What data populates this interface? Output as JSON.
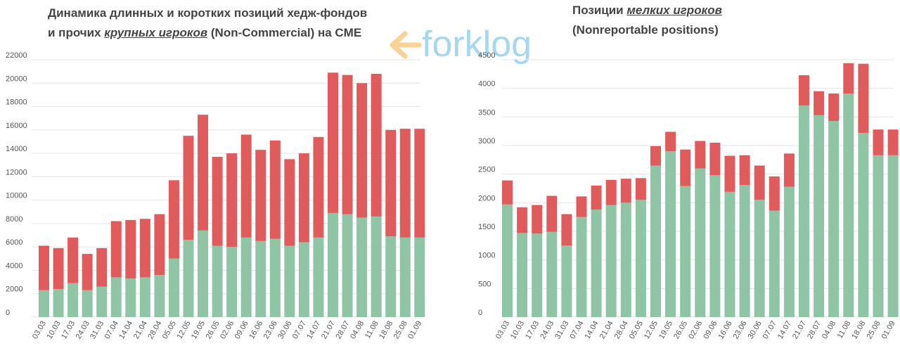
{
  "watermark": {
    "text": "forklog",
    "color": "#5db8e6",
    "accent": "#f5b041"
  },
  "colors": {
    "long": "#8fc4a4",
    "short": "#e05c5c",
    "grid": "#e4e4e4",
    "text": "#555555"
  },
  "chart_data": [
    {
      "type": "bar",
      "stacked": true,
      "title_parts": [
        "Динамика длинных и коротких позиций хедж-фондов",
        "и прочих ",
        "крупных игроков",
        " (Non-Commercial) на CME"
      ],
      "categories": [
        "03.03",
        "10.03",
        "17.03",
        "24.03",
        "31.03",
        "07.04",
        "14.04",
        "21.04",
        "28.04",
        "05.05",
        "12.05",
        "19.05",
        "26.05",
        "02.06",
        "09.06",
        "16.06",
        "23.06",
        "30.06",
        "07.07",
        "14.07",
        "21.07",
        "28.07",
        "04.08",
        "11.08",
        "18.08",
        "25.08",
        "01.09"
      ],
      "series": [
        {
          "color": "#8fc4a4",
          "values": [
            2300,
            2400,
            2900,
            2300,
            2600,
            3400,
            3300,
            3400,
            3600,
            5000,
            6600,
            7400,
            6100,
            6000,
            6800,
            6500,
            6700,
            6100,
            6400,
            6800,
            8900,
            8800,
            8500,
            8600,
            6900,
            6800,
            6800
          ]
        },
        {
          "color": "#e05c5c",
          "values": [
            3800,
            3500,
            3900,
            3100,
            3300,
            4800,
            5000,
            5000,
            5200,
            6700,
            8900,
            9900,
            7600,
            8000,
            8800,
            7800,
            8400,
            7400,
            7600,
            8600,
            12000,
            11900,
            11500,
            12200,
            9100,
            9300,
            9300
          ]
        }
      ],
      "ylim": [
        0,
        22000
      ],
      "yticks": [
        0,
        2000,
        4000,
        6000,
        8000,
        10000,
        12000,
        14000,
        16000,
        18000,
        20000,
        22000
      ],
      "grid": true
    },
    {
      "type": "bar",
      "stacked": true,
      "title_parts": [
        "Позиции ",
        "мелких игроков",
        "(Nonreportable positions)"
      ],
      "categories": [
        "03.03",
        "10.03",
        "17.03",
        "24.03",
        "31.03",
        "07.04",
        "14.04",
        "21.04",
        "28.04",
        "05.05",
        "12.05",
        "19.05",
        "26.05",
        "02.06",
        "09.06",
        "16.06",
        "23.06",
        "30.06",
        "07.07",
        "14.07",
        "21.07",
        "28.07",
        "04.08",
        "11.08",
        "18.08",
        "25.08",
        "01.09"
      ],
      "series": [
        {
          "color": "#8fc4a4",
          "values": [
            1970,
            1470,
            1460,
            1490,
            1250,
            1750,
            1880,
            1960,
            2000,
            2050,
            2650,
            2900,
            2290,
            2600,
            2480,
            2190,
            2310,
            2050,
            1860,
            2280,
            3700,
            3530,
            3430,
            3910,
            3220,
            2830,
            2830
          ]
        },
        {
          "color": "#e05c5c",
          "values": [
            420,
            450,
            500,
            630,
            550,
            360,
            420,
            440,
            420,
            380,
            340,
            340,
            640,
            480,
            570,
            630,
            520,
            600,
            600,
            580,
            530,
            420,
            480,
            530,
            1210,
            450,
            450
          ]
        }
      ],
      "ylim": [
        0,
        4500
      ],
      "yticks": [
        0,
        500,
        1000,
        1500,
        2000,
        2500,
        3000,
        3500,
        4000,
        4500
      ],
      "grid": true
    }
  ]
}
